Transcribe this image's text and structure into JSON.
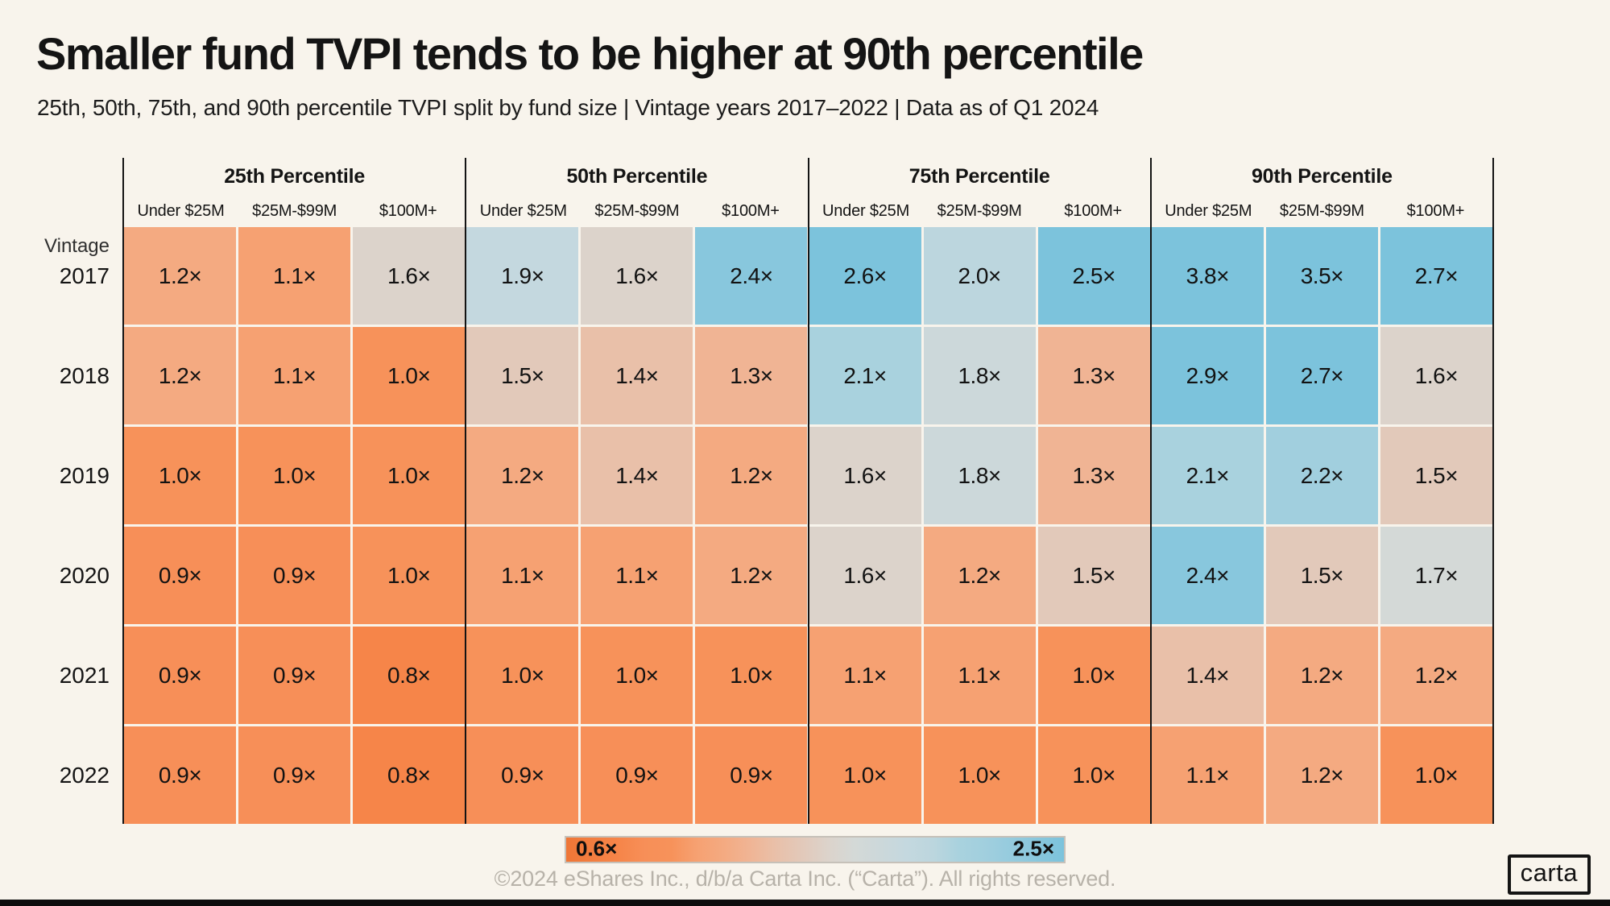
{
  "title": "Smaller fund TVPI tends to be higher at 90th percentile",
  "subtitle": "25th, 50th, 75th, and 90th percentile TVPI split by fund size | Vintage years 2017–2022 | Data as of Q1 2024",
  "chart_data": {
    "type": "heatmap",
    "row_label_header": "Vintage",
    "groups": [
      "25th Percentile",
      "50th Percentile",
      "75th Percentile",
      "90th Percentile"
    ],
    "columns": [
      "Under $25M",
      "$25M-$99M",
      "$100M+"
    ],
    "value_suffix": "×",
    "rows": [
      {
        "year": "2017",
        "values": [
          1.2,
          1.1,
          1.6,
          1.9,
          1.6,
          2.4,
          2.6,
          2.0,
          2.5,
          3.8,
          3.5,
          2.7
        ]
      },
      {
        "year": "2018",
        "values": [
          1.2,
          1.1,
          1.0,
          1.5,
          1.4,
          1.3,
          2.1,
          1.8,
          1.3,
          2.9,
          2.7,
          1.6
        ]
      },
      {
        "year": "2019",
        "values": [
          1.0,
          1.0,
          1.0,
          1.2,
          1.4,
          1.2,
          1.6,
          1.8,
          1.3,
          2.1,
          2.2,
          1.5
        ]
      },
      {
        "year": "2020",
        "values": [
          0.9,
          0.9,
          1.0,
          1.1,
          1.1,
          1.2,
          1.6,
          1.2,
          1.5,
          2.4,
          1.5,
          1.7
        ]
      },
      {
        "year": "2021",
        "values": [
          0.9,
          0.9,
          0.8,
          1.0,
          1.0,
          1.0,
          1.1,
          1.1,
          1.0,
          1.4,
          1.2,
          1.2
        ]
      },
      {
        "year": "2022",
        "values": [
          0.9,
          0.9,
          0.8,
          0.9,
          0.9,
          0.9,
          1.0,
          1.0,
          1.0,
          1.1,
          1.2,
          1.0
        ]
      }
    ],
    "color_scale": {
      "min": 0.6,
      "max": 2.5,
      "anchors": [
        [
          0.6,
          "#ef7636"
        ],
        [
          0.8,
          "#f68549"
        ],
        [
          0.9,
          "#f78f58"
        ],
        [
          1.0,
          "#f7925a"
        ],
        [
          1.1,
          "#f6a172"
        ],
        [
          1.2,
          "#f4aa81"
        ],
        [
          1.3,
          "#f0b494"
        ],
        [
          1.4,
          "#e9c0a9"
        ],
        [
          1.5,
          "#e2c9ba"
        ],
        [
          1.6,
          "#dcd3cb"
        ],
        [
          1.7,
          "#d4d9d7"
        ],
        [
          1.8,
          "#ccd8da"
        ],
        [
          1.9,
          "#c4d8df"
        ],
        [
          2.0,
          "#bcd6de"
        ],
        [
          2.1,
          "#a9d2de"
        ],
        [
          2.2,
          "#a1cfde"
        ],
        [
          2.5,
          "#7cc3dc"
        ]
      ]
    },
    "legend": {
      "min_label": "0.6×",
      "max_label": "2.5×"
    }
  },
  "footer": {
    "copyright": "©2024 eShares Inc., d/b/a Carta Inc. (“Carta”). All rights reserved.",
    "logo_text": "carta"
  },
  "colors": {
    "background": "#f8f4ec",
    "text": "#141414",
    "divider": "#141414",
    "footer_text": "#b7b2a9"
  }
}
